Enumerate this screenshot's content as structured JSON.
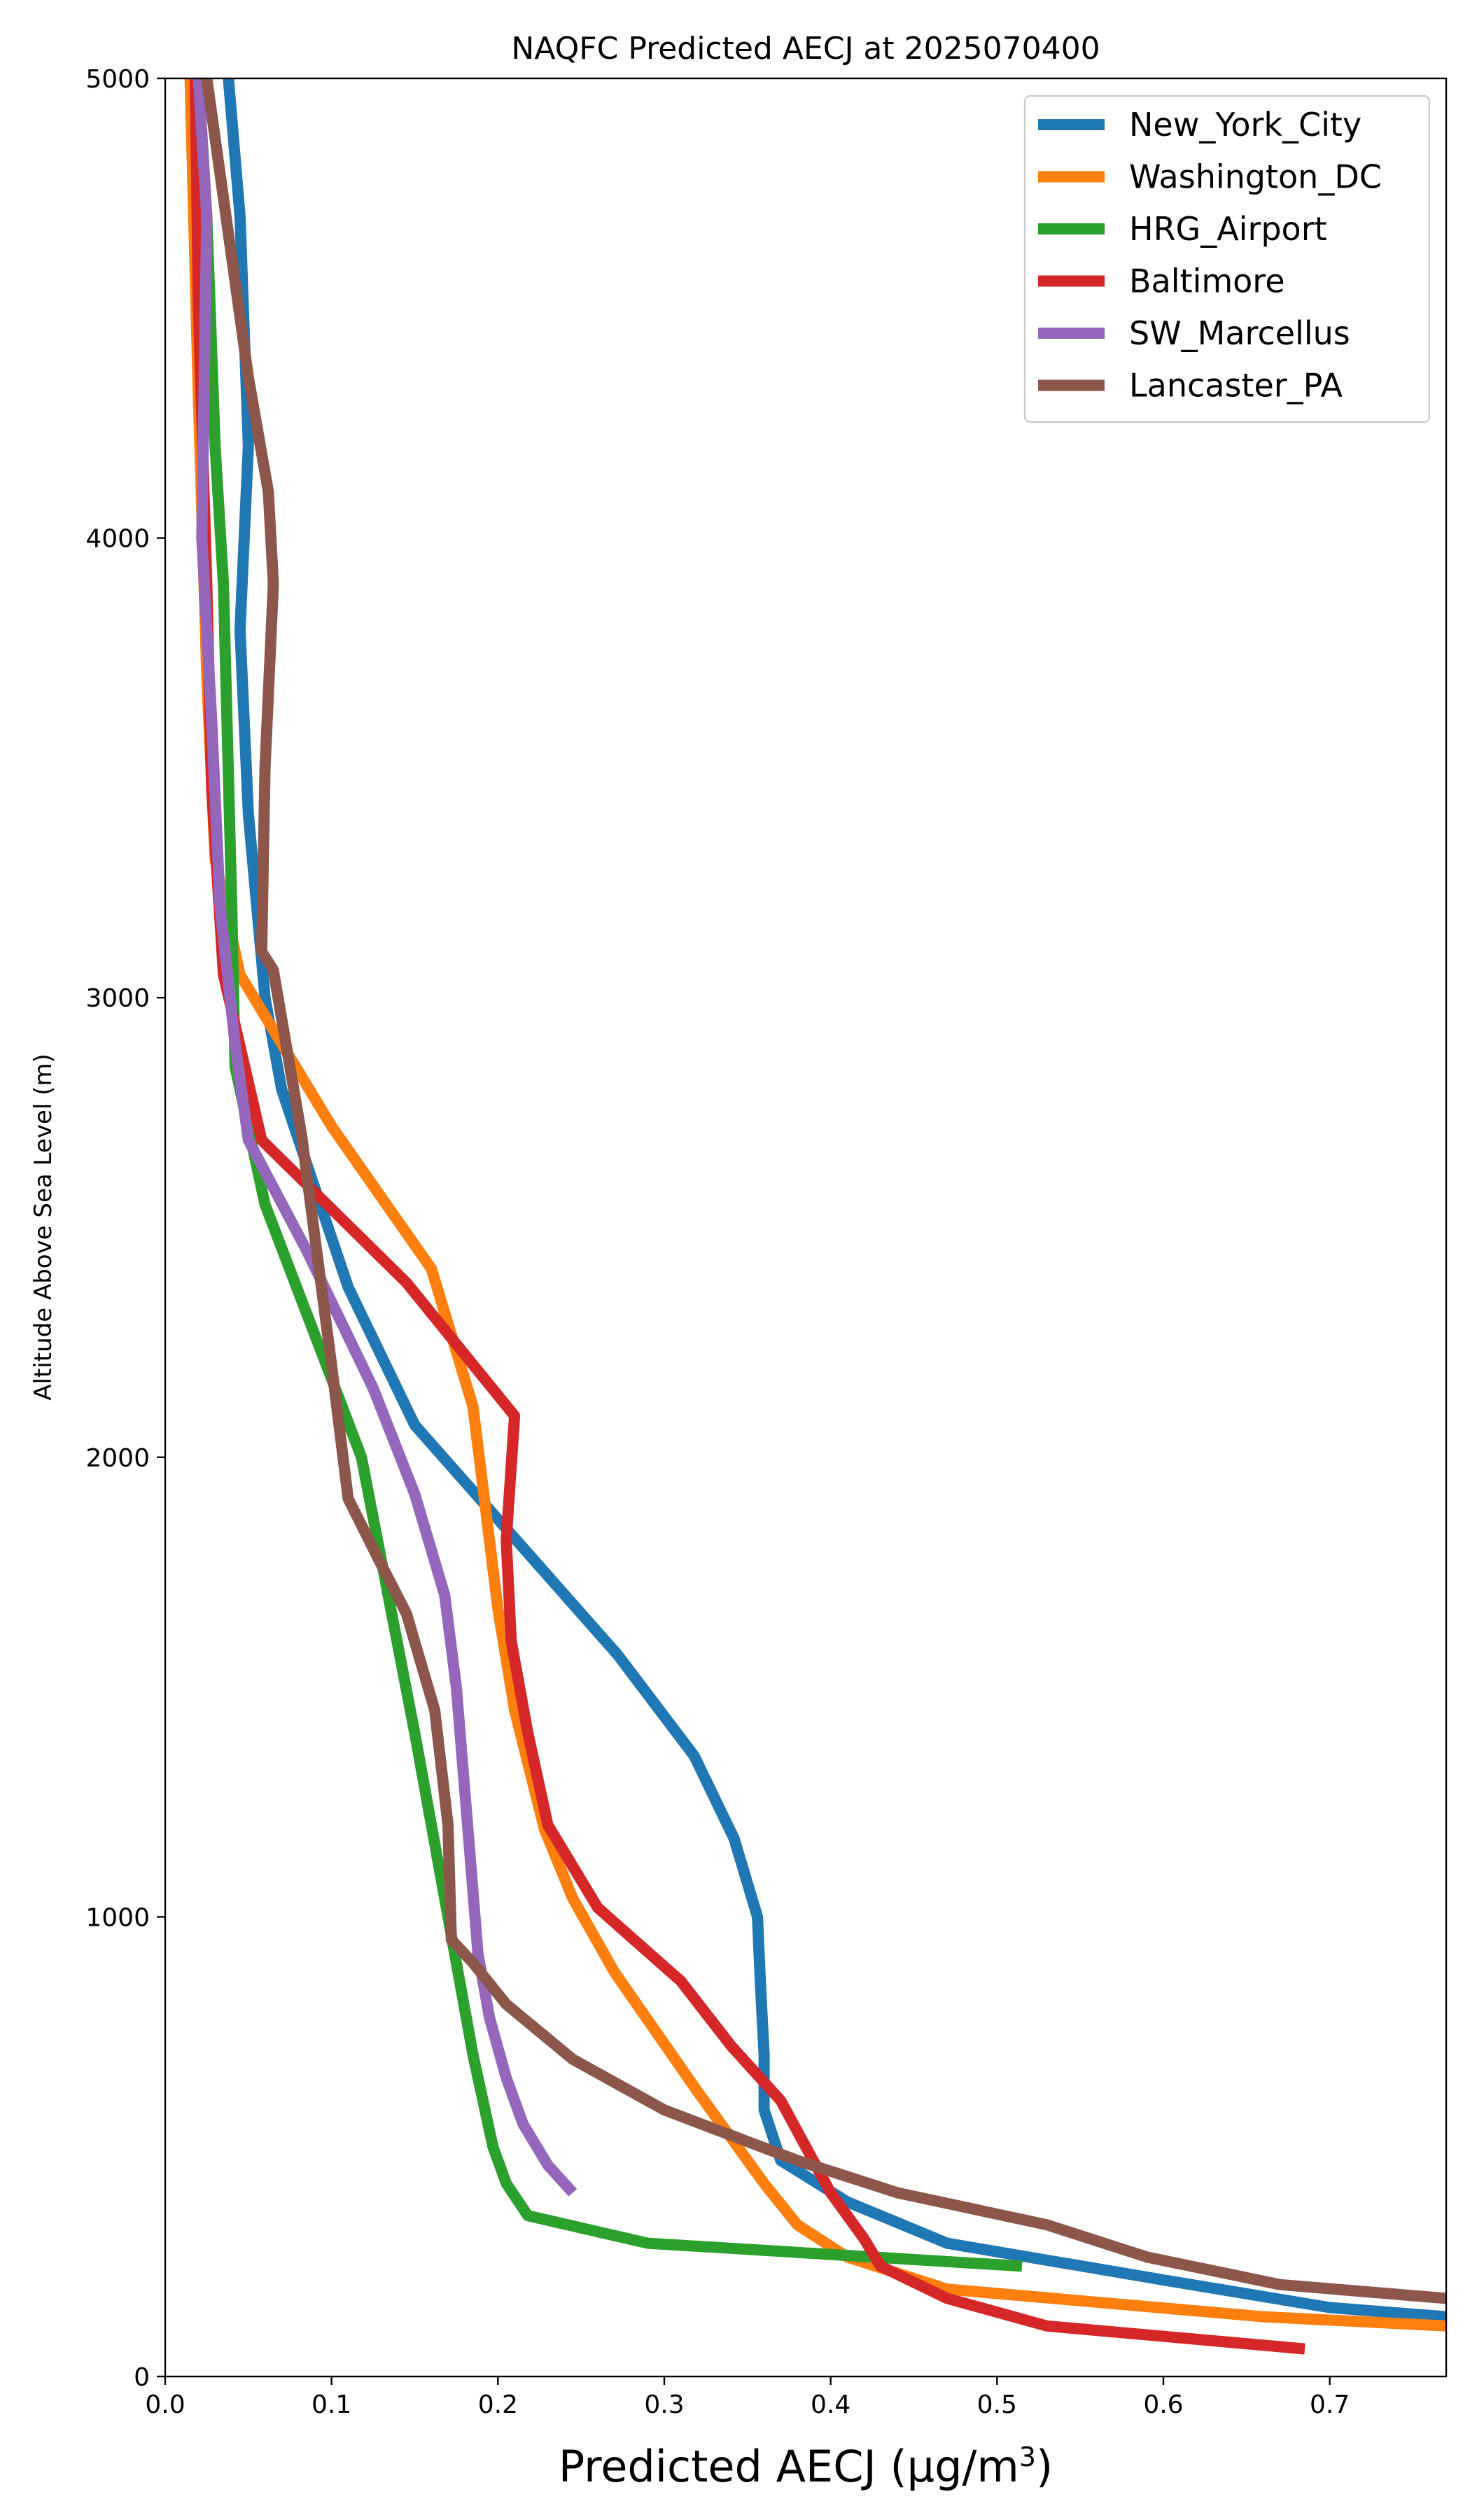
{
  "chart_data": {
    "type": "line",
    "title": "NAQFC Predicted AECJ at 2025070400",
    "xlabel": "Predicted AECJ (μg/m",
    "xlabel_sup": "3",
    "xlabel_close": ")",
    "ylabel": "Altitude Above Sea Level (m)",
    "xlim": [
      0,
      0.77
    ],
    "ylim": [
      0,
      5000
    ],
    "xticks": [
      0.0,
      0.1,
      0.2,
      0.3,
      0.4,
      0.5,
      0.6,
      0.7
    ],
    "xtick_labels": [
      "0.0",
      "0.1",
      "0.2",
      "0.3",
      "0.4",
      "0.5",
      "0.6",
      "0.7"
    ],
    "yticks": [
      0,
      1000,
      2000,
      3000,
      4000,
      5000
    ],
    "ytick_labels": [
      "0",
      "1000",
      "2000",
      "3000",
      "4000",
      "5000"
    ],
    "grid": false,
    "legend_position": "top-right",
    "series": [
      {
        "name": "New_York_City",
        "color": "#1f77b4",
        "x": [
          0.77,
          0.7,
          0.6,
          0.47,
          0.41,
          0.37,
          0.36,
          0.36,
          0.358,
          0.356,
          0.342,
          0.318,
          0.272,
          0.15,
          0.11,
          0.07,
          0.06,
          0.05,
          0.045,
          0.05,
          0.045,
          0.038
        ],
        "y": [
          130,
          150,
          210,
          290,
          380,
          470,
          580,
          700,
          840,
          1000,
          1170,
          1350,
          1570,
          2070,
          2370,
          2800,
          3000,
          3400,
          3800,
          4200,
          4700,
          5000
        ]
      },
      {
        "name": "Washington_DC",
        "color": "#ff7f0e",
        "x": [
          0.77,
          0.66,
          0.47,
          0.41,
          0.38,
          0.36,
          0.32,
          0.27,
          0.245,
          0.228,
          0.21,
          0.2,
          0.185,
          0.16,
          0.1,
          0.045,
          0.03,
          0.025,
          0.02,
          0.015
        ],
        "y": [
          110,
          130,
          190,
          260,
          330,
          420,
          620,
          880,
          1040,
          1190,
          1450,
          1670,
          2110,
          2410,
          2720,
          3050,
          3300,
          3700,
          4300,
          5000
        ]
      },
      {
        "name": "HRG_Airport",
        "color": "#2ca02c",
        "x": [
          0.515,
          0.29,
          0.218,
          0.205,
          0.197,
          0.185,
          0.165,
          0.15,
          0.118,
          0.06,
          0.042,
          0.04,
          0.035,
          0.03,
          0.025,
          0.02
        ],
        "y": [
          240,
          290,
          350,
          420,
          500,
          700,
          1100,
          1400,
          2000,
          2550,
          2850,
          3200,
          3900,
          4200,
          4700,
          5000
        ]
      },
      {
        "name": "Baltimore",
        "color": "#d62728",
        "x": [
          0.685,
          0.53,
          0.47,
          0.43,
          0.42,
          0.4,
          0.37,
          0.34,
          0.31,
          0.26,
          0.23,
          0.218,
          0.208,
          0.205,
          0.21,
          0.145,
          0.058,
          0.035,
          0.028,
          0.025,
          0.02,
          0.018
        ],
        "y": [
          60,
          110,
          170,
          240,
          300,
          400,
          600,
          720,
          860,
          1020,
          1200,
          1400,
          1600,
          1820,
          2090,
          2380,
          2690,
          3050,
          3450,
          3900,
          4500,
          5000
        ]
      },
      {
        "name": "SW_Marcellus",
        "color": "#9467bd",
        "x": [
          0.245,
          0.23,
          0.215,
          0.205,
          0.195,
          0.188,
          0.184,
          0.175,
          0.168,
          0.15,
          0.125,
          0.085,
          0.05,
          0.042,
          0.033,
          0.028,
          0.022,
          0.025,
          0.02
        ],
        "y": [
          400,
          460,
          550,
          650,
          780,
          920,
          1100,
          1500,
          1700,
          1920,
          2150,
          2450,
          2690,
          2900,
          3200,
          3600,
          4000,
          4700,
          5000
        ]
      },
      {
        "name": "Lancaster_PA",
        "color": "#8c564b",
        "x": [
          0.77,
          0.67,
          0.59,
          0.53,
          0.44,
          0.38,
          0.3,
          0.245,
          0.205,
          0.185,
          0.172,
          0.17,
          0.162,
          0.145,
          0.128,
          0.11,
          0.1,
          0.082,
          0.065,
          0.058,
          0.06,
          0.065,
          0.062,
          0.05,
          0.025
        ],
        "y": [
          170,
          200,
          260,
          330,
          400,
          470,
          580,
          690,
          810,
          900,
          950,
          1200,
          1450,
          1660,
          1780,
          1910,
          2200,
          2700,
          3060,
          3100,
          3500,
          3900,
          4100,
          4350,
          5000
        ]
      }
    ]
  }
}
